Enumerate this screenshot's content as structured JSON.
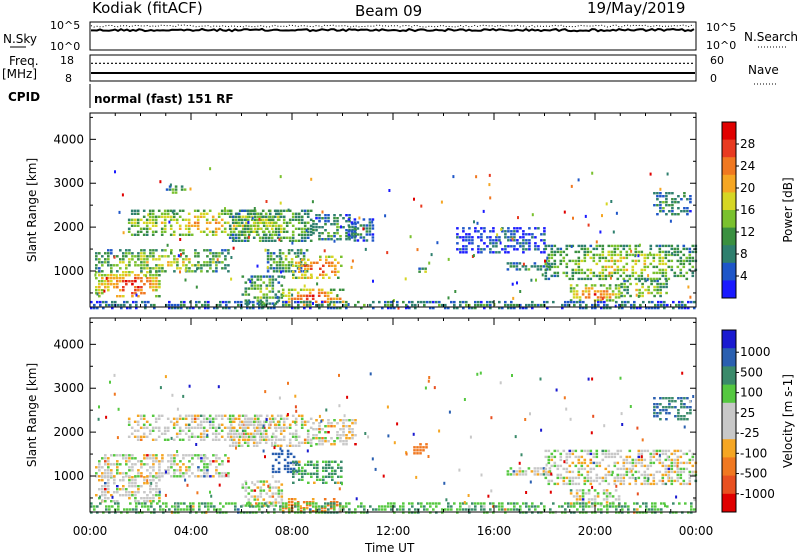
{
  "header": {
    "station": "Kodiak (fitACF)",
    "beam": "Beam 09",
    "date": "19/May/2019"
  },
  "strip_nsky": {
    "left_label": "N.Sky",
    "left_ticks": [
      "10^5",
      "10^0"
    ],
    "right_label": "N.Search",
    "right_ticks": [
      "10^5",
      "10^0"
    ]
  },
  "strip_freq": {
    "left_label_line1": "Freq.",
    "left_label_line2": "[MHz]",
    "left_ticks": [
      "18",
      "8"
    ],
    "right_label": "Nave",
    "right_ticks": [
      "60",
      "0"
    ],
    "freq_mhz": 10.5,
    "nave": 44
  },
  "strip_cpid": {
    "left_label": "CPID",
    "mode_text": "normal (fast) 151 RF"
  },
  "time_axis": {
    "label": "Time UT",
    "ticks": [
      "00:00",
      "04:00",
      "08:00",
      "12:00",
      "16:00",
      "20:00",
      "00:00"
    ],
    "range_hours": [
      0,
      24
    ]
  },
  "chart_data": [
    {
      "type": "heatmap",
      "name": "power",
      "ylabel": "Slant Range [km]",
      "yticks": [
        "1000",
        "2000",
        "3000",
        "4000"
      ],
      "ylim": [
        180,
        4600
      ],
      "colorbar": {
        "label": "Power [dB]",
        "ticks": [
          "4",
          "8",
          "12",
          "16",
          "20",
          "24",
          "28"
        ],
        "range": [
          0,
          32
        ],
        "colors": [
          "#1a1aff",
          "#1e56c8",
          "#2e7f6e",
          "#3a9040",
          "#7ac12e",
          "#d6d624",
          "#f5a623",
          "#f07820",
          "#e83a20",
          "#e00000"
        ]
      },
      "regions": [
        {
          "t": [
            0.2,
            2.8
          ],
          "r": [
            400,
            1000
          ],
          "level": 0.95
        },
        {
          "t": [
            0.2,
            5.5
          ],
          "r": [
            1000,
            1500
          ],
          "level": 0.6
        },
        {
          "t": [
            1.5,
            7.5
          ],
          "r": [
            1800,
            2400
          ],
          "level": 0.7
        },
        {
          "t": [
            5.5,
            8.8
          ],
          "r": [
            1700,
            2400
          ],
          "level": 0.55
        },
        {
          "t": [
            6.0,
            7.6
          ],
          "r": [
            250,
            900
          ],
          "level": 0.5
        },
        {
          "t": [
            7.0,
            8.6
          ],
          "r": [
            1000,
            1500
          ],
          "level": 0.5
        },
        {
          "t": [
            7.6,
            10.0
          ],
          "r": [
            220,
            600
          ],
          "level": 1.0
        },
        {
          "t": [
            8.0,
            10.0
          ],
          "r": [
            850,
            1350
          ],
          "level": 0.95
        },
        {
          "t": [
            8.8,
            10.5
          ],
          "r": [
            1700,
            2300
          ],
          "level": 0.4
        },
        {
          "t": [
            3.0,
            3.8
          ],
          "r": [
            2750,
            2950
          ],
          "level": 0.5
        },
        {
          "t": [
            10.2,
            11.2
          ],
          "r": [
            1700,
            2200
          ],
          "level": 0.3
        },
        {
          "t": [
            13.0,
            13.4
          ],
          "r": [
            980,
            1080
          ],
          "level": 0.5
        },
        {
          "t": [
            16.5,
            18.2
          ],
          "r": [
            1000,
            1200
          ],
          "level": 0.4
        },
        {
          "t": [
            14.5,
            18.0
          ],
          "r": [
            1400,
            2000
          ],
          "level": 0.2
        },
        {
          "t": [
            18.0,
            24.0
          ],
          "r": [
            800,
            1600
          ],
          "level": 0.6
        },
        {
          "t": [
            19.0,
            21.0
          ],
          "r": [
            300,
            700
          ],
          "level": 0.85
        },
        {
          "t": [
            21.0,
            22.8
          ],
          "r": [
            400,
            800
          ],
          "level": 0.6
        },
        {
          "t": [
            22.3,
            23.8
          ],
          "r": [
            2300,
            2800
          ],
          "level": 0.4
        },
        {
          "t": [
            0.0,
            24.0
          ],
          "r": [
            180,
            320
          ],
          "level": 0.35
        }
      ]
    },
    {
      "type": "heatmap",
      "name": "velocity",
      "ylabel": "Slant Range [km]",
      "yticks": [
        "1000",
        "2000",
        "3000",
        "4000"
      ],
      "ylim": [
        180,
        4600
      ],
      "colorbar": {
        "label": "Velocity [m s-1]",
        "ticks": [
          "1000",
          "500",
          "100",
          "25",
          "-25",
          "-100",
          "-500",
          "-1000"
        ],
        "colors": [
          "#1a1ad0",
          "#2a5fb0",
          "#3a8a6a",
          "#55c840",
          "#c8c8c8",
          "#c8c8c8",
          "#f5a623",
          "#f07820",
          "#e85020",
          "#e00000"
        ]
      },
      "regions": [
        {
          "t": [
            0.2,
            2.8
          ],
          "r": [
            400,
            1000
          ],
          "v": 0
        },
        {
          "t": [
            0.2,
            5.5
          ],
          "r": [
            1000,
            1500
          ],
          "v": 0
        },
        {
          "t": [
            1.5,
            7.5
          ],
          "r": [
            1800,
            2400
          ],
          "v": 0
        },
        {
          "t": [
            5.5,
            8.8
          ],
          "r": [
            1700,
            2400
          ],
          "v": 0
        },
        {
          "t": [
            6.0,
            7.6
          ],
          "r": [
            350,
            900
          ],
          "v": 0
        },
        {
          "t": [
            7.2,
            8.2
          ],
          "r": [
            1100,
            1600
          ],
          "v": 400
        },
        {
          "t": [
            8.0,
            10.0
          ],
          "r": [
            850,
            1350
          ],
          "v": 120
        },
        {
          "t": [
            7.6,
            10.0
          ],
          "r": [
            220,
            500
          ],
          "v": -120
        },
        {
          "t": [
            8.8,
            10.5
          ],
          "r": [
            1700,
            2300
          ],
          "v": 0
        },
        {
          "t": [
            12.8,
            13.3
          ],
          "r": [
            1500,
            1750
          ],
          "v": -150
        },
        {
          "t": [
            16.5,
            18.2
          ],
          "r": [
            1000,
            1200
          ],
          "v": 0
        },
        {
          "t": [
            18.0,
            24.0
          ],
          "r": [
            800,
            1600
          ],
          "v": 0
        },
        {
          "t": [
            19.0,
            21.0
          ],
          "r": [
            300,
            700
          ],
          "v": 0
        },
        {
          "t": [
            22.3,
            23.8
          ],
          "r": [
            2300,
            2800
          ],
          "v": 300
        },
        {
          "t": [
            0.0,
            24.0
          ],
          "r": [
            180,
            400
          ],
          "v": 90
        }
      ]
    }
  ]
}
